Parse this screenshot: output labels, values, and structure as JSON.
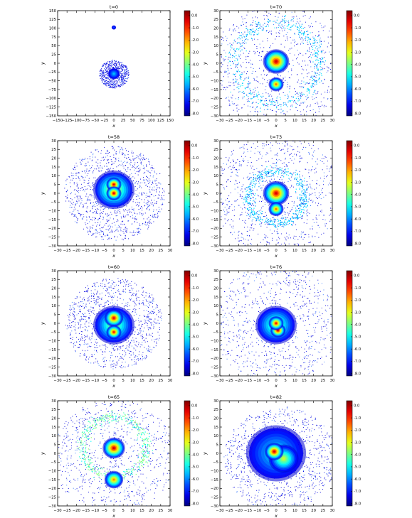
{
  "figure": {
    "colorbar": {
      "ticks": [
        "0.0",
        "-1.0",
        "-2.0",
        "-3.0",
        "-4.0",
        "-5.0",
        "-6.0",
        "-7.0",
        "-8.0"
      ],
      "tick_values": [
        0,
        -1,
        -2,
        -3,
        -4,
        -5,
        -6,
        -7,
        -8
      ],
      "range": [
        -8.2,
        0.4
      ],
      "colormap": "jet"
    },
    "colors": {
      "axis": "#000000",
      "background": "#ffffff"
    }
  },
  "chart_data": [
    {
      "type": "scatter",
      "title": "t=0",
      "xlabel": "x",
      "ylabel": "y",
      "xlim": [
        -150,
        150
      ],
      "ylim": [
        -150,
        150
      ],
      "xticks": [
        -150,
        -125,
        -100,
        -75,
        -50,
        -25,
        0,
        25,
        50,
        75,
        100,
        125,
        150
      ],
      "yticks": [
        150,
        125,
        100,
        75,
        50,
        25,
        0,
        -25,
        -50,
        -75,
        -100,
        -125,
        -150
      ],
      "xtick_labels": [
        "−150",
        "−125",
        "−100",
        "−75",
        "−50",
        "−25",
        "0",
        "25",
        "50",
        "75",
        "100",
        "125",
        "150"
      ],
      "ytick_labels": [
        "150",
        "125",
        "100",
        "75",
        "50",
        "25",
        "0",
        "−25",
        "−50",
        "−75",
        "−100",
        "−125",
        "−150"
      ],
      "features": [
        {
          "type": "blob",
          "x": 0,
          "y": -30,
          "r": 16,
          "peak": -5.5
        },
        {
          "type": "blob",
          "x": 0,
          "y": 102,
          "r": 6,
          "peak": -6.5
        },
        {
          "type": "halo",
          "x": 0,
          "y": -30,
          "r": 40,
          "density": 0.4
        }
      ]
    },
    {
      "type": "scatter",
      "title": "t=70",
      "xlabel": "x",
      "ylabel": "y",
      "xlim": [
        -30,
        30
      ],
      "ylim": [
        -30,
        30
      ],
      "xticks": [
        -30,
        -25,
        -20,
        -15,
        -10,
        -5,
        0,
        5,
        10,
        15,
        20,
        25,
        30
      ],
      "yticks": [
        30,
        25,
        20,
        15,
        10,
        5,
        0,
        -5,
        -10,
        -15,
        -20,
        -25,
        -30
      ],
      "xtick_labels": [
        "−30",
        "−25",
        "−20",
        "−15",
        "−10",
        "−5",
        "0",
        "5",
        "10",
        "15",
        "20",
        "25",
        "30"
      ],
      "ytick_labels": [
        "30",
        "25",
        "20",
        "15",
        "10",
        "5",
        "0",
        "−5",
        "−10",
        "−15",
        "−20",
        "−25",
        "−30"
      ],
      "features": [
        {
          "type": "blob",
          "x": 0,
          "y": 1,
          "r": 7,
          "peak": -0.3
        },
        {
          "type": "blob",
          "x": 0,
          "y": -12,
          "r": 4,
          "peak": -1.6
        },
        {
          "type": "ring",
          "x": 0,
          "y": 0,
          "r": 23,
          "w": 4,
          "peak": -5.0
        },
        {
          "type": "halo",
          "x": 0,
          "y": -2,
          "r": 35,
          "density": 0.5
        }
      ]
    },
    {
      "type": "scatter",
      "title": "t=58",
      "xlabel": "x",
      "ylabel": "y",
      "xlim": [
        -30,
        30
      ],
      "ylim": [
        -30,
        30
      ],
      "xticks": [
        -30,
        -25,
        -20,
        -15,
        -10,
        -5,
        0,
        5,
        10,
        15,
        20,
        25,
        30
      ],
      "yticks": [
        30,
        25,
        20,
        15,
        10,
        5,
        0,
        -5,
        -10,
        -15,
        -20,
        -25,
        -30
      ],
      "xtick_labels": [
        "−30",
        "−25",
        "−20",
        "−15",
        "−10",
        "−5",
        "0",
        "5",
        "10",
        "15",
        "20",
        "25",
        "30"
      ],
      "ytick_labels": [
        "30",
        "25",
        "20",
        "15",
        "10",
        "5",
        "0",
        "−5",
        "−10",
        "−15",
        "−20",
        "−25",
        "−30"
      ],
      "features": [
        {
          "type": "blob",
          "x": 0,
          "y": 5,
          "r": 4,
          "peak": -0.4
        },
        {
          "type": "blob",
          "x": 0,
          "y": 0,
          "r": 4,
          "peak": -0.4
        },
        {
          "type": "blob",
          "x": 0,
          "y": 2,
          "r": 11,
          "peak": -2.8
        },
        {
          "type": "halo",
          "x": 0,
          "y": 0,
          "r": 27,
          "density": 0.7
        }
      ]
    },
    {
      "type": "scatter",
      "title": "t=73",
      "xlabel": "x",
      "ylabel": "y",
      "xlim": [
        -30,
        30
      ],
      "ylim": [
        -30,
        30
      ],
      "xticks": [
        -30,
        -25,
        -20,
        -15,
        -10,
        -5,
        0,
        5,
        10,
        15,
        20,
        25,
        30
      ],
      "yticks": [
        30,
        25,
        20,
        15,
        10,
        5,
        0,
        -5,
        -10,
        -15,
        -20,
        -25,
        -30
      ],
      "xtick_labels": [
        "−30",
        "−25",
        "−20",
        "−15",
        "−10",
        "−5",
        "0",
        "5",
        "10",
        "15",
        "20",
        "25",
        "30"
      ],
      "ytick_labels": [
        "30",
        "25",
        "20",
        "15",
        "10",
        "5",
        "0",
        "−5",
        "−10",
        "−15",
        "−20",
        "−25",
        "−30"
      ],
      "features": [
        {
          "type": "blob",
          "x": 0,
          "y": 0,
          "r": 7,
          "peak": -0.3
        },
        {
          "type": "blob",
          "x": 0,
          "y": -9,
          "r": 4,
          "peak": -1.6
        },
        {
          "type": "ring",
          "x": 0,
          "y": -2,
          "r": 15,
          "w": 3,
          "peak": -5.0
        },
        {
          "type": "halo",
          "x": 0,
          "y": 0,
          "r": 34,
          "density": 0.55
        }
      ]
    },
    {
      "type": "scatter",
      "title": "t=60",
      "xlabel": "x",
      "ylabel": "y",
      "xlim": [
        -30,
        30
      ],
      "ylim": [
        -30,
        30
      ],
      "xticks": [
        -30,
        -25,
        -20,
        -15,
        -10,
        -5,
        0,
        5,
        10,
        15,
        20,
        25,
        30
      ],
      "yticks": [
        30,
        25,
        20,
        15,
        10,
        5,
        0,
        -5,
        -10,
        -15,
        -20,
        -25,
        -30
      ],
      "xtick_labels": [
        "−30",
        "−25",
        "−20",
        "−15",
        "−10",
        "−5",
        "0",
        "5",
        "10",
        "15",
        "20",
        "25",
        "30"
      ],
      "ytick_labels": [
        "30",
        "25",
        "20",
        "15",
        "10",
        "5",
        "0",
        "−5",
        "−10",
        "−15",
        "−20",
        "−25",
        "−30"
      ],
      "features": [
        {
          "type": "blob",
          "x": 0,
          "y": 3,
          "r": 5,
          "peak": -0.5
        },
        {
          "type": "blob",
          "x": 0,
          "y": -5,
          "r": 4,
          "peak": -0.8
        },
        {
          "type": "blob",
          "x": 0,
          "y": -1,
          "r": 11,
          "peak": -3.5
        },
        {
          "type": "halo",
          "x": 0,
          "y": 0,
          "r": 26,
          "density": 0.65
        }
      ]
    },
    {
      "type": "scatter",
      "title": "t=76",
      "xlabel": "x",
      "ylabel": "y",
      "xlim": [
        -30,
        30
      ],
      "ylim": [
        -30,
        30
      ],
      "xticks": [
        -30,
        -25,
        -20,
        -15,
        -10,
        -5,
        0,
        5,
        10,
        15,
        20,
        25,
        30
      ],
      "yticks": [
        30,
        25,
        20,
        15,
        10,
        5,
        0,
        -5,
        -10,
        -15,
        -20,
        -25,
        -30
      ],
      "xtick_labels": [
        "−30",
        "−25",
        "−20",
        "−15",
        "−10",
        "−5",
        "0",
        "5",
        "10",
        "15",
        "20",
        "25",
        "30"
      ],
      "ytick_labels": [
        "30",
        "25",
        "20",
        "15",
        "10",
        "5",
        "0",
        "−5",
        "−10",
        "−15",
        "−20",
        "−25",
        "−30"
      ],
      "features": [
        {
          "type": "blob",
          "x": 1,
          "y": -4,
          "r": 4,
          "peak": -0.3
        },
        {
          "type": "blob",
          "x": 0,
          "y": 0,
          "r": 4,
          "peak": -0.8
        },
        {
          "type": "blob",
          "x": 0,
          "y": -1,
          "r": 11,
          "peak": -3.8
        },
        {
          "type": "halo",
          "x": 0,
          "y": 0,
          "r": 34,
          "density": 0.5
        }
      ]
    },
    {
      "type": "scatter",
      "title": "t=65",
      "xlabel": "x",
      "ylabel": "y",
      "xlim": [
        -30,
        30
      ],
      "ylim": [
        -30,
        30
      ],
      "xticks": [
        -30,
        -25,
        -20,
        -15,
        -10,
        -5,
        0,
        5,
        10,
        15,
        20,
        25,
        30
      ],
      "yticks": [
        30,
        25,
        20,
        15,
        10,
        5,
        0,
        -5,
        -10,
        -15,
        -20,
        -25,
        -30
      ],
      "xtick_labels": [
        "−30",
        "−25",
        "−20",
        "−15",
        "−10",
        "−5",
        "0",
        "5",
        "10",
        "15",
        "20",
        "25",
        "30"
      ],
      "ytick_labels": [
        "30",
        "25",
        "20",
        "15",
        "10",
        "5",
        "0",
        "−5",
        "−10",
        "−15",
        "−20",
        "−25",
        "−30"
      ],
      "features": [
        {
          "type": "blob",
          "x": 0,
          "y": 3,
          "r": 6,
          "peak": -0.3
        },
        {
          "type": "blob",
          "x": 0,
          "y": -15,
          "r": 5,
          "peak": -1.8
        },
        {
          "type": "ring",
          "x": 0,
          "y": 4,
          "r": 17,
          "w": 3,
          "peak": -3.6
        },
        {
          "type": "halo",
          "x": 0,
          "y": -2,
          "r": 33,
          "density": 0.5
        }
      ]
    },
    {
      "type": "scatter",
      "title": "t=82",
      "xlabel": "x",
      "ylabel": "y",
      "xlim": [
        -30,
        30
      ],
      "ylim": [
        -30,
        30
      ],
      "xticks": [
        -30,
        -25,
        -20,
        -15,
        -10,
        -5,
        0,
        5,
        10,
        15,
        20,
        25,
        30
      ],
      "yticks": [
        30,
        25,
        20,
        15,
        10,
        5,
        0,
        -5,
        -10,
        -15,
        -20,
        -25,
        -30
      ],
      "xtick_labels": [
        "−30",
        "−25",
        "−20",
        "−15",
        "−10",
        "−5",
        "0",
        "5",
        "10",
        "15",
        "20",
        "25",
        "30"
      ],
      "ytick_labels": [
        "30",
        "25",
        "20",
        "15",
        "10",
        "5",
        "0",
        "−5",
        "−10",
        "−15",
        "−20",
        "−25",
        "−30"
      ],
      "features": [
        {
          "type": "blob",
          "x": -1,
          "y": 1,
          "r": 5,
          "peak": -0.3
        },
        {
          "type": "blob",
          "x": 4,
          "y": -3,
          "r": 8,
          "peak": -3.2
        },
        {
          "type": "blob",
          "x": 0,
          "y": 0,
          "r": 16,
          "peak": -5.0
        },
        {
          "type": "halo",
          "x": 2,
          "y": -3,
          "r": 30,
          "density": 0.6
        }
      ]
    }
  ]
}
